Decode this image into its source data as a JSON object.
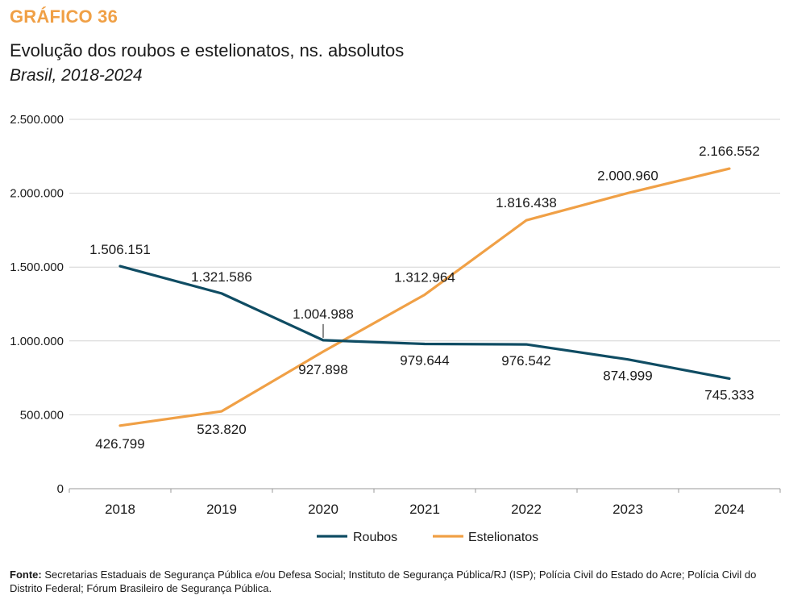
{
  "header": {
    "kicker": "GRÁFICO 36",
    "title": "Evolução dos roubos e estelionatos, ns. absolutos",
    "subtitle": "Brasil, 2018-2024"
  },
  "chart_data": {
    "type": "line",
    "title": "Evolução dos roubos e estelionatos, ns. absolutos",
    "subtitle": "Brasil, 2018-2024",
    "categories": [
      "2018",
      "2019",
      "2020",
      "2021",
      "2022",
      "2023",
      "2024"
    ],
    "ylim": [
      0,
      2500000
    ],
    "yticks": [
      0,
      500000,
      1000000,
      1500000,
      2000000,
      2500000
    ],
    "ytick_labels": [
      "0",
      "500.000",
      "1.000.000",
      "1.500.000",
      "2.000.000",
      "2.500.000"
    ],
    "grid": true,
    "legend_position": "bottom",
    "series": [
      {
        "name": "Roubos",
        "color": "#0f4c63",
        "values": [
          1506151,
          1321586,
          1004988,
          979644,
          976542,
          874999,
          745333
        ],
        "labels": [
          "1.506.151",
          "1.321.586",
          "1.004.988",
          "979.644",
          "976.542",
          "874.999",
          "745.333"
        ]
      },
      {
        "name": "Estelionatos",
        "color": "#f0a046",
        "values": [
          426799,
          523820,
          927898,
          1312964,
          1816438,
          2000960,
          2166552
        ],
        "labels": [
          "426.799",
          "523.820",
          "927.898",
          "1.312.964",
          "1.816.438",
          "2.000.960",
          "2.166.552"
        ]
      }
    ]
  },
  "footer": {
    "source_label": "Fonte:",
    "source_text": " Secretarias Estaduais de Segurança Pública e/ou Defesa Social; Instituto de Segurança Pública/RJ (ISP); Polícia Civil do Estado do Acre; Polícia Civil do Distrito Federal; Fórum Brasileiro de Segurança Pública."
  }
}
